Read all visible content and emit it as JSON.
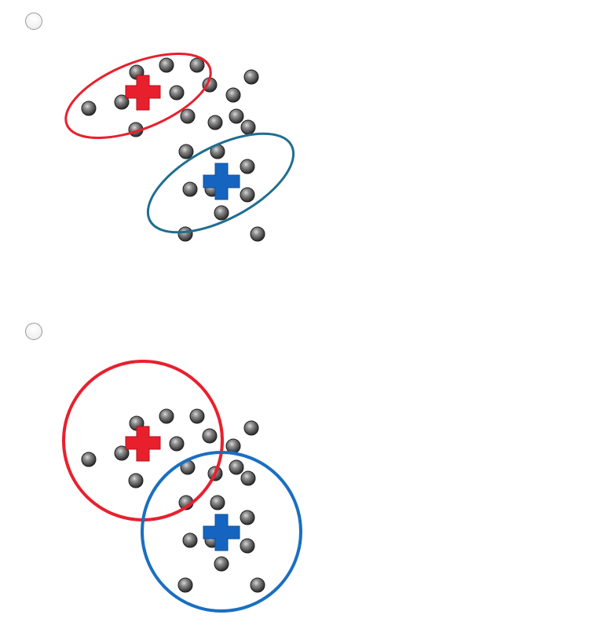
{
  "options": [
    {
      "selected": false,
      "diagram": {
        "shape": "ellipse",
        "cluster_colors": {
          "red": "#e8202e",
          "blue": "#1a6fc0"
        },
        "cross_colors": {
          "red": "#e8202e",
          "blue": "#1565c0"
        },
        "outline_colors": {
          "red": "#e8202e",
          "blue": "#1f6e8f"
        }
      }
    },
    {
      "selected": false,
      "diagram": {
        "shape": "circle",
        "cluster_colors": {
          "red": "#e8202e",
          "blue": "#1a6fc0"
        },
        "cross_colors": {
          "red": "#e8202e",
          "blue": "#1565c0"
        },
        "outline_colors": {
          "red": "#e8202e",
          "blue": "#1a6fc0"
        }
      }
    }
  ],
  "icons": {
    "radio": "radio-button-icon",
    "data_point": "gray-sphere",
    "centroid": "plus-icon"
  }
}
